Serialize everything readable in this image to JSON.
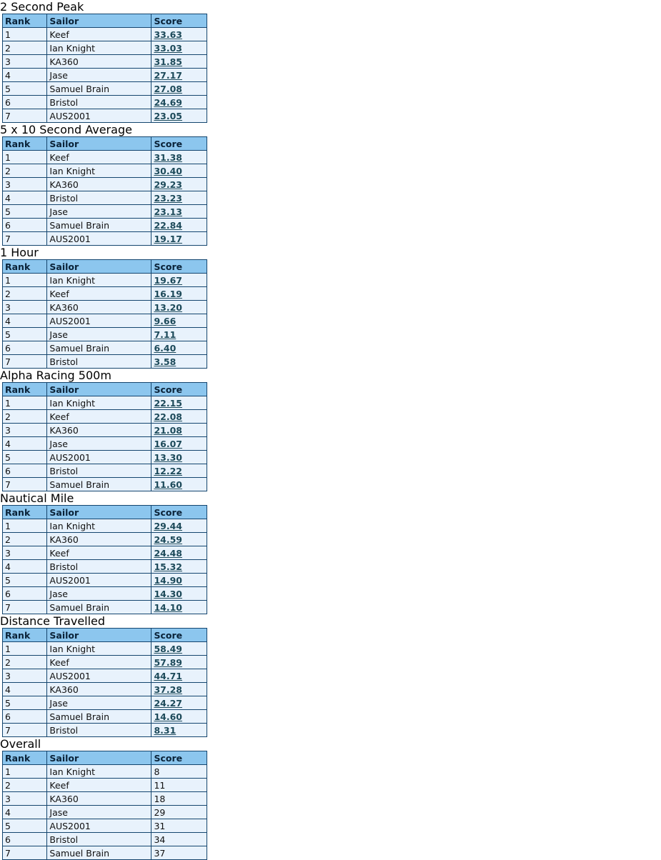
{
  "panels": [
    {
      "title": "2 Second Peak",
      "headers": [
        "Rank",
        "Sailor",
        "Score"
      ],
      "rows": [
        [
          "1",
          "Keef",
          "33.63"
        ],
        [
          "2",
          "Ian Knight",
          "33.03"
        ],
        [
          "3",
          "KA360",
          "31.85"
        ],
        [
          "4",
          "Jase",
          "27.17"
        ],
        [
          "5",
          "Samuel Brain",
          "27.08"
        ],
        [
          "6",
          "Bristol",
          "24.69"
        ],
        [
          "7",
          "AUS2001",
          "23.05"
        ]
      ]
    },
    {
      "title": "5 x 10 Second Average",
      "headers": [
        "Rank",
        "Sailor",
        "Score"
      ],
      "rows": [
        [
          "1",
          "Keef",
          "31.38"
        ],
        [
          "2",
          "Ian Knight",
          "30.40"
        ],
        [
          "3",
          "KA360",
          "29.23"
        ],
        [
          "4",
          "Bristol",
          "23.23"
        ],
        [
          "5",
          "Jase",
          "23.13"
        ],
        [
          "6",
          "Samuel Brain",
          "22.84"
        ],
        [
          "7",
          "AUS2001",
          "19.17"
        ]
      ]
    },
    {
      "title": "1 Hour",
      "headers": [
        "Rank",
        "Sailor",
        "Score"
      ],
      "rows": [
        [
          "1",
          "Ian Knight",
          "19.67"
        ],
        [
          "2",
          "Keef",
          "16.19"
        ],
        [
          "3",
          "KA360",
          "13.20"
        ],
        [
          "4",
          "AUS2001",
          "9.66"
        ],
        [
          "5",
          "Jase",
          "7.11"
        ],
        [
          "6",
          "Samuel Brain",
          "6.40"
        ],
        [
          "7",
          "Bristol",
          "3.58"
        ]
      ]
    },
    {
      "title": "Alpha Racing 500m",
      "headers": [
        "Rank",
        "Sailor",
        "Score"
      ],
      "rows": [
        [
          "1",
          "Ian Knight",
          "22.15"
        ],
        [
          "2",
          "Keef",
          "22.08"
        ],
        [
          "3",
          "KA360",
          "21.08"
        ],
        [
          "4",
          "Jase",
          "16.07"
        ],
        [
          "5",
          "AUS2001",
          "13.30"
        ],
        [
          "6",
          "Bristol",
          "12.22"
        ],
        [
          "7",
          "Samuel Brain",
          "11.60"
        ]
      ]
    },
    {
      "title": "Nautical Mile",
      "headers": [
        "Rank",
        "Sailor",
        "Score"
      ],
      "rows": [
        [
          "1",
          "Ian Knight",
          "29.44"
        ],
        [
          "2",
          "KA360",
          "24.59"
        ],
        [
          "3",
          "Keef",
          "24.48"
        ],
        [
          "4",
          "Bristol",
          "15.32"
        ],
        [
          "5",
          "AUS2001",
          "14.90"
        ],
        [
          "6",
          "Jase",
          "14.30"
        ],
        [
          "7",
          "Samuel Brain",
          "14.10"
        ]
      ]
    },
    {
      "title": "Distance Travelled",
      "headers": [
        "Rank",
        "Sailor",
        "Score"
      ],
      "rows": [
        [
          "1",
          "Ian Knight",
          "58.49"
        ],
        [
          "2",
          "Keef",
          "57.89"
        ],
        [
          "3",
          "AUS2001",
          "44.71"
        ],
        [
          "4",
          "KA360",
          "37.28"
        ],
        [
          "5",
          "Jase",
          "24.27"
        ],
        [
          "6",
          "Samuel Brain",
          "14.60"
        ],
        [
          "7",
          "Bristol",
          "8.31"
        ]
      ]
    }
  ],
  "overall": {
    "title": "Overall",
    "headers": [
      "Rank",
      "Sailor",
      "Score"
    ],
    "rows": [
      [
        "1",
        "Ian Knight",
        "8"
      ],
      [
        "2",
        "Keef",
        "11"
      ],
      [
        "3",
        "KA360",
        "18"
      ],
      [
        "4",
        "Jase",
        "29"
      ],
      [
        "5",
        "AUS2001",
        "31"
      ],
      [
        "6",
        "Bristol",
        "34"
      ],
      [
        "7",
        "Samuel Brain",
        "37"
      ]
    ]
  }
}
